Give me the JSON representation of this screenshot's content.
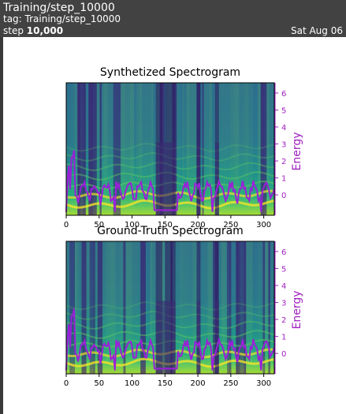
{
  "header": {
    "title": "Training/step_10000",
    "tag": "tag: Training/step_10000",
    "step_label": "step",
    "step_value": "10,000",
    "date": "Sat Aug 06"
  },
  "chart_data": [
    {
      "type": "heatmap",
      "title": "Synthetized Spectrogram",
      "x_ticks": [
        "0",
        "50",
        "100",
        "150",
        "200",
        "250",
        "300"
      ],
      "xlim": [
        0,
        316
      ],
      "right_axis": {
        "label": "Energy",
        "ticks": [
          "6",
          "5",
          "4",
          "3",
          "2",
          "1",
          "0"
        ],
        "ylim": [
          -1.2,
          6.6
        ]
      },
      "line_color": "#9b1fd9"
    },
    {
      "type": "heatmap",
      "title": "Ground-Truth Spectrogram",
      "x_ticks": [
        "0",
        "50",
        "100",
        "150",
        "200",
        "250",
        "300"
      ],
      "xlim": [
        0,
        316
      ],
      "right_axis": {
        "label": "Energy",
        "ticks": [
          "6",
          "5",
          "4",
          "3",
          "2",
          "1",
          "0"
        ],
        "ylim": [
          -1.2,
          6.6
        ]
      },
      "line_color": "#9b1fd9"
    }
  ],
  "colors": {
    "header_bg": "#424242",
    "energy_axis": "#a020c0",
    "line": "#9b1fd9"
  }
}
